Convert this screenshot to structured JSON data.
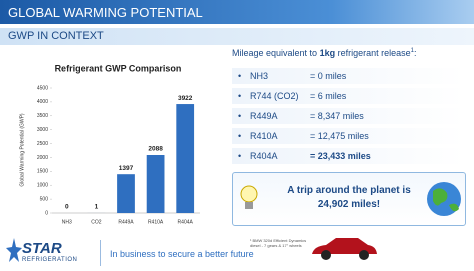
{
  "header": {
    "title": "GLOBAL WARMING POTENTIAL",
    "subtitle": "GWP IN CONTEXT"
  },
  "chart_data": {
    "type": "bar",
    "title": "Refrigerant GWP Comparison",
    "y_label": "Global Warming Potential (GWP)",
    "categories": [
      "NH3",
      "CO2",
      "R449A",
      "R410A",
      "R404A"
    ],
    "values": [
      0,
      1,
      1397,
      2088,
      3922
    ],
    "color": "#2f6fc0",
    "ylim": [
      0,
      4500
    ],
    "yticks": [
      0,
      500,
      1000,
      1500,
      2000,
      2500,
      3000,
      3500,
      4000,
      4500
    ],
    "grid": false
  },
  "mileage": {
    "intro": [
      "Mileage equivalent to ",
      "1kg",
      " refrigerant release",
      "1",
      ":"
    ],
    "rows": [
      {
        "bullet": "•",
        "name": "NH3",
        "value": "= 0 miles"
      },
      {
        "bullet": "•",
        "name": "R744 (CO2)",
        "value": "= 6 miles"
      },
      {
        "bullet": "•",
        "name": "R449A",
        "value": "= 8,347 miles"
      },
      {
        "bullet": "•",
        "name": "R410A",
        "value": "= 12,475 miles"
      },
      {
        "bullet": "•",
        "name": "R404A",
        "value": "= 23,433 miles"
      }
    ]
  },
  "callout": {
    "line1": "A trip around the planet is",
    "line2": "24,902 miles!"
  },
  "footer": {
    "logo_name": "STAR",
    "logo_sub": "REFRIGERATION",
    "tagline": "In business to secure a better future",
    "car_note": "¹ BMW 320d Efficient Dynamics diesel - 7 gears & 17\" wheels"
  }
}
